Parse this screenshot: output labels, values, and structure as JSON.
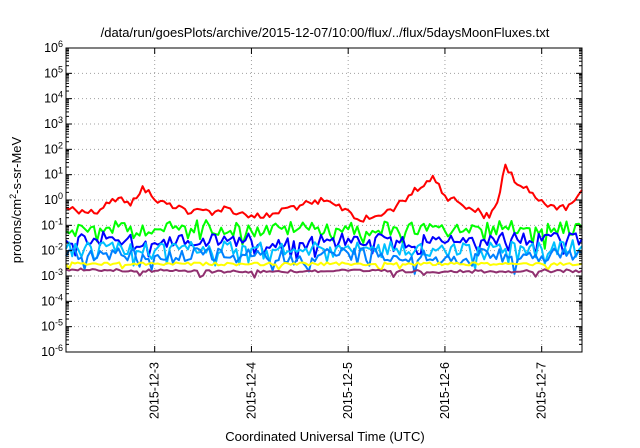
{
  "chart_data": {
    "type": "line",
    "title": "/data/run/goesPlots/archive/2015-12-07/10:00/flux/../flux/5daysMoonFluxes.txt",
    "xlabel": "Coordinated Universal Time (UTC)",
    "ylabel": {
      "before": "protons/cm",
      "sup": "2",
      "after": "-s-sr-MeV"
    },
    "y_scale": "log",
    "ylim": [
      1e-06,
      1000000.0
    ],
    "xlim": [
      "2015-12-02T02:00",
      "2015-12-07T10:00"
    ],
    "y_ticks": [
      {
        "value": 1e-06,
        "base": "10",
        "exp": "-6"
      },
      {
        "value": 1e-05,
        "base": "10",
        "exp": "-5"
      },
      {
        "value": 0.0001,
        "base": "10",
        "exp": "-4"
      },
      {
        "value": 0.001,
        "base": "10",
        "exp": "-3"
      },
      {
        "value": 0.01,
        "base": "10",
        "exp": "-2"
      },
      {
        "value": 0.1,
        "base": "10",
        "exp": "-1"
      },
      {
        "value": 1,
        "base": "10",
        "exp": "0"
      },
      {
        "value": 10,
        "base": "10",
        "exp": "1"
      },
      {
        "value": 100,
        "base": "10",
        "exp": "2"
      },
      {
        "value": 1000,
        "base": "10",
        "exp": "3"
      },
      {
        "value": 10000,
        "base": "10",
        "exp": "4"
      },
      {
        "value": 100000,
        "base": "10",
        "exp": "5"
      },
      {
        "value": 1000000,
        "base": "10",
        "exp": "6"
      }
    ],
    "x_ticks": [
      "2015-12-3",
      "2015-12-4",
      "2015-12-5",
      "2015-12-6",
      "2015-12-7"
    ],
    "grid": true,
    "legend": "none",
    "series_colors": [
      "#ff0000",
      "#00ff00",
      "#0000ff",
      "#00c0ff",
      "#0080ff",
      "#ffff00",
      "#903070"
    ],
    "series": [
      {
        "color": "#ff0000",
        "x": [
          "2015-12-02T02:00",
          "2015-12-02T06:00",
          "2015-12-02T09:00",
          "2015-12-02T12:00",
          "2015-12-02T15:00",
          "2015-12-02T18:00",
          "2015-12-02T21:00",
          "2015-12-03T00:00",
          "2015-12-03T03:00",
          "2015-12-03T06:00",
          "2015-12-03T09:00",
          "2015-12-03T12:00",
          "2015-12-03T15:00",
          "2015-12-03T18:00",
          "2015-12-03T21:00",
          "2015-12-04T00:00",
          "2015-12-04T03:00",
          "2015-12-04T06:00",
          "2015-12-04T09:00",
          "2015-12-04T12:00",
          "2015-12-04T15:00",
          "2015-12-04T18:00",
          "2015-12-04T21:00",
          "2015-12-05T00:00",
          "2015-12-05T03:00",
          "2015-12-05T06:00",
          "2015-12-05T09:00",
          "2015-12-05T12:00",
          "2015-12-05T15:00",
          "2015-12-05T18:00",
          "2015-12-05T21:00",
          "2015-12-06T00:00",
          "2015-12-06T03:00",
          "2015-12-06T06:00",
          "2015-12-06T09:00",
          "2015-12-06T11:00",
          "2015-12-06T13:00",
          "2015-12-06T15:00",
          "2015-12-06T18:00",
          "2015-12-06T21:00",
          "2015-12-07T00:00",
          "2015-12-07T03:00",
          "2015-12-07T06:00",
          "2015-12-07T09:00",
          "2015-12-07T10:00"
        ],
        "y": [
          0.5,
          0.4,
          0.3,
          0.8,
          1.2,
          0.6,
          3.5,
          1.0,
          0.7,
          0.6,
          0.3,
          0.4,
          0.35,
          0.5,
          0.3,
          0.25,
          0.2,
          0.3,
          0.5,
          0.6,
          0.7,
          0.9,
          0.6,
          0.4,
          0.15,
          0.2,
          0.3,
          0.6,
          1.5,
          3.0,
          9.0,
          1.5,
          0.9,
          0.5,
          0.3,
          0.2,
          0.8,
          25,
          4,
          2,
          1.0,
          0.6,
          0.4,
          1.5,
          2.5
        ]
      },
      {
        "color": "#00ff00",
        "x": [
          "2015-12-02T02:00",
          "2015-12-02T12:00",
          "2015-12-03T00:00",
          "2015-12-03T12:00",
          "2015-12-04T00:00",
          "2015-12-04T12:00",
          "2015-12-05T00:00",
          "2015-12-05T12:00",
          "2015-12-06T00:00",
          "2015-12-06T12:00",
          "2015-12-07T00:00",
          "2015-12-07T10:00"
        ],
        "y": [
          0.06,
          0.08,
          0.07,
          0.09,
          0.06,
          0.08,
          0.07,
          0.08,
          0.06,
          0.09,
          0.07,
          0.08
        ]
      },
      {
        "color": "#0000ff",
        "x": [
          "2015-12-02T02:00",
          "2015-12-02T12:00",
          "2015-12-03T00:00",
          "2015-12-03T12:00",
          "2015-12-04T00:00",
          "2015-12-04T12:00",
          "2015-12-05T00:00",
          "2015-12-05T12:00",
          "2015-12-06T00:00",
          "2015-12-06T12:00",
          "2015-12-07T00:00",
          "2015-12-07T10:00"
        ],
        "y": [
          0.025,
          0.03,
          0.02,
          0.03,
          0.025,
          0.02,
          0.03,
          0.025,
          0.02,
          0.03,
          0.025,
          0.03
        ]
      },
      {
        "color": "#00c0ff",
        "x": [
          "2015-12-02T02:00",
          "2015-12-02T12:00",
          "2015-12-03T00:00",
          "2015-12-03T12:00",
          "2015-12-04T00:00",
          "2015-12-04T12:00",
          "2015-12-05T00:00",
          "2015-12-05T12:00",
          "2015-12-06T00:00",
          "2015-12-06T12:00",
          "2015-12-07T00:00",
          "2015-12-07T10:00"
        ],
        "y": [
          0.012,
          0.015,
          0.01,
          0.014,
          0.012,
          0.011,
          0.015,
          0.012,
          0.01,
          0.014,
          0.012,
          0.015
        ]
      },
      {
        "color": "#0080ff",
        "x": [
          "2015-12-02T02:00",
          "2015-12-02T12:00",
          "2015-12-03T00:00",
          "2015-12-03T12:00",
          "2015-12-04T00:00",
          "2015-12-04T12:00",
          "2015-12-05T00:00",
          "2015-12-05T12:00",
          "2015-12-06T00:00",
          "2015-12-06T12:00",
          "2015-12-07T00:00",
          "2015-12-07T10:00"
        ],
        "y": [
          0.006,
          0.008,
          0.006,
          0.007,
          0.006,
          0.006,
          0.008,
          0.006,
          0.005,
          0.007,
          0.006,
          0.008
        ]
      },
      {
        "color": "#ffff00",
        "x": [
          "2015-12-02T02:00",
          "2015-12-03T00:00",
          "2015-12-04T00:00",
          "2015-12-05T00:00",
          "2015-12-06T00:00",
          "2015-12-07T00:00",
          "2015-12-07T10:00"
        ],
        "y": [
          0.003,
          0.003,
          0.003,
          0.003,
          0.003,
          0.003,
          0.003
        ]
      },
      {
        "color": "#903070",
        "x": [
          "2015-12-02T02:00",
          "2015-12-03T00:00",
          "2015-12-04T00:00",
          "2015-12-05T00:00",
          "2015-12-06T00:00",
          "2015-12-07T00:00",
          "2015-12-07T10:00"
        ],
        "y": [
          0.0018,
          0.0016,
          0.0015,
          0.0016,
          0.0015,
          0.0016,
          0.0016
        ]
      }
    ]
  }
}
